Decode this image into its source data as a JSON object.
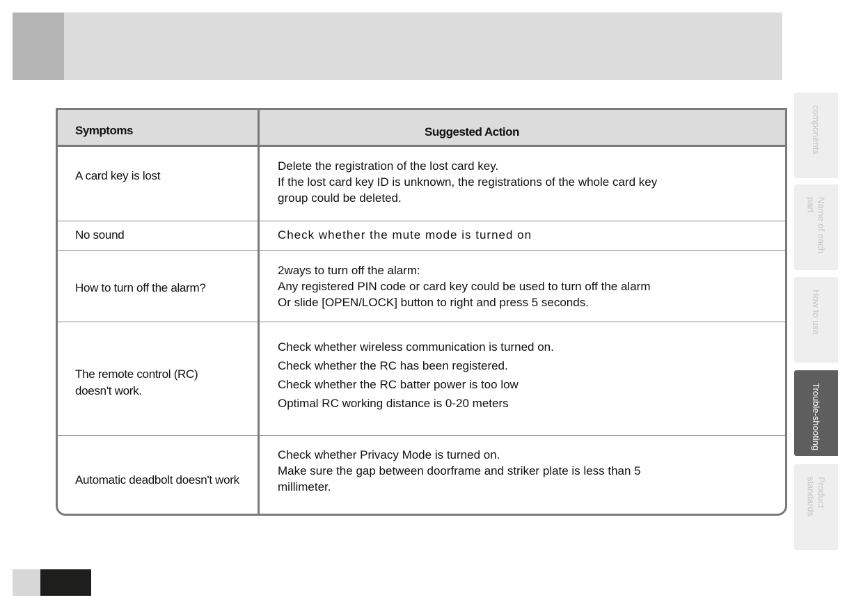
{
  "table": {
    "headers": {
      "symptoms": "Symptoms",
      "action": "Suggested Action"
    },
    "rows": [
      {
        "symptom": [
          "A card key is lost"
        ],
        "action": [
          "Delete the registration of the lost card key.",
          "If the lost card key ID is unknown, the registrations of the whole card key",
          "group could be deleted."
        ]
      },
      {
        "symptom": [
          "No sound"
        ],
        "action": [
          "Check whether the mute mode is turned on"
        ]
      },
      {
        "symptom": [
          "How to turn off the alarm?"
        ],
        "action": [
          "2ways to turn off the alarm:",
          "Any registered PIN code or card key could be used to turn off the alarm",
          "Or slide [OPEN/LOCK] button to right and press 5 seconds."
        ]
      },
      {
        "symptom": [
          "The remote control (RC)",
          "doesn't work."
        ],
        "action": [
          "Check whether wireless communication is turned on.",
          "Check whether the RC has been registered.",
          "Check whether the RC batter power is too low",
          " Optimal RC working distance is 0-20 meters"
        ]
      },
      {
        "symptom": [
          "Automatic deadbolt doesn't work"
        ],
        "action": [
          "Check whether Privacy Mode is turned on.",
          "Make sure the gap between doorframe and striker plate is less than 5",
          "millimeter."
        ]
      }
    ]
  },
  "side_tabs": [
    {
      "label": "components",
      "active": false
    },
    {
      "label": "Name of each part",
      "active": false
    },
    {
      "label": "How to use",
      "active": false
    },
    {
      "label": "Trouble-shooting",
      "active": true
    },
    {
      "label": "Product standards",
      "active": false
    }
  ]
}
